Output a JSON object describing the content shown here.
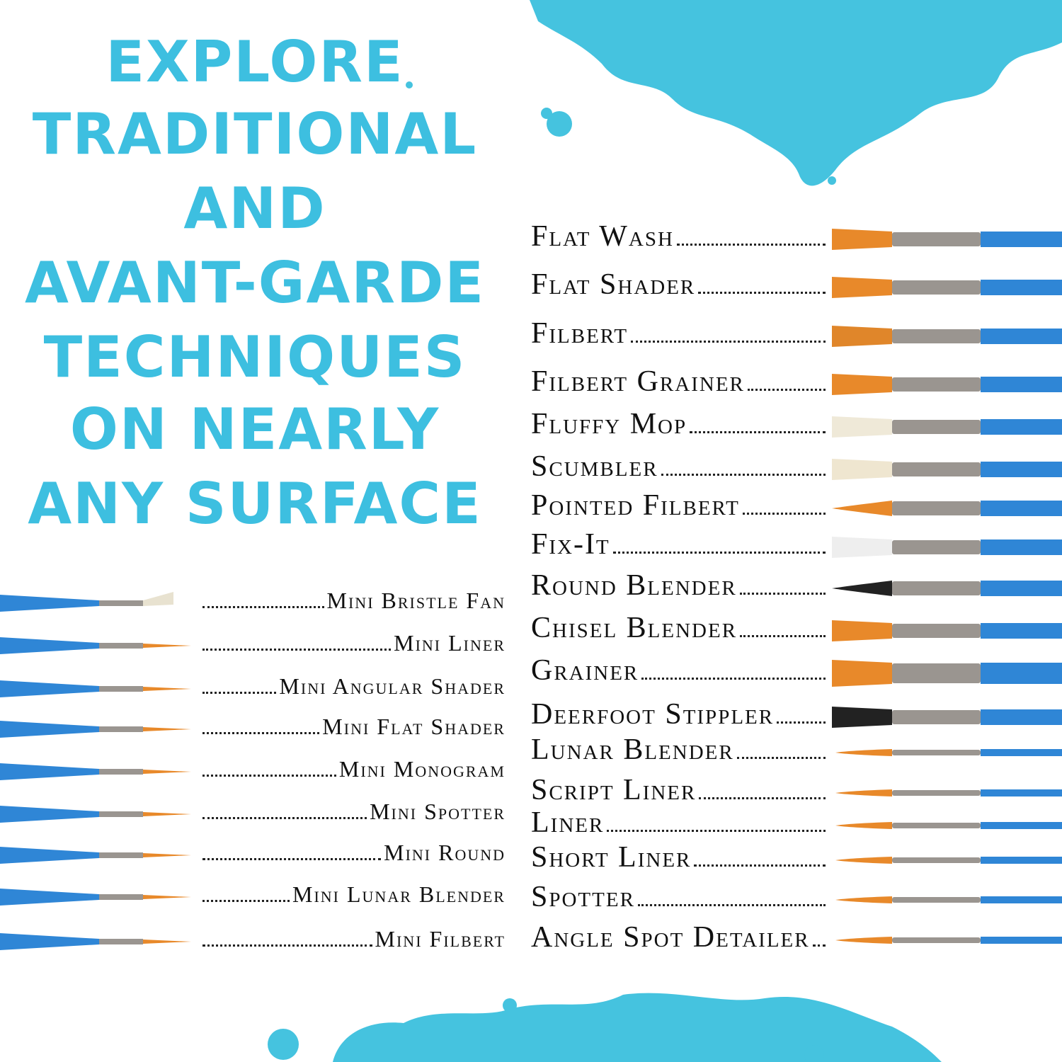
{
  "headline": [
    "EXPLORE",
    "TRADITIONAL",
    "AND",
    "AVANT-GARDE",
    "TECHNIQUES",
    "ON NEARLY",
    "ANY SURFACE"
  ],
  "brushes": [
    "Flat Wash",
    "Flat Shader",
    "Filbert",
    "Filbert Grainer",
    "Fluffy Mop",
    "Scumbler",
    "Pointed Filbert",
    "Fix-It",
    "Round Blender",
    "Chisel Blender",
    "Grainer",
    "Deerfoot Stippler",
    "Lunar Blender",
    "Script Liner",
    "Liner",
    "Short Liner",
    "Spotter",
    "Angle Spot Detailer"
  ],
  "mini_brushes": [
    "Mini Bristle Fan",
    "Mini Liner",
    "Mini Angular Shader",
    "Mini Flat Shader",
    "Mini Monogram",
    "Mini Spotter",
    "Mini Round",
    "Mini Lunar Blender",
    "Mini Filbert"
  ]
}
